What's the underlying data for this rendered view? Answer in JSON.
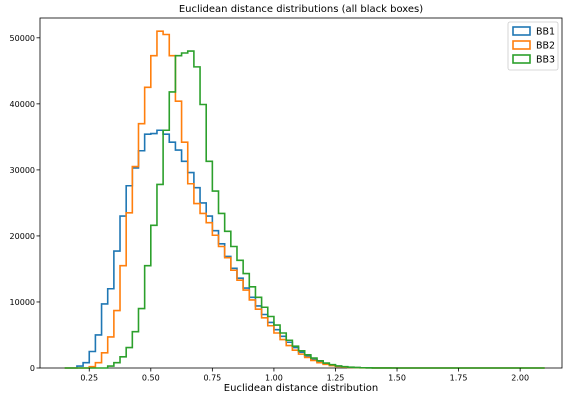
{
  "chart_data": {
    "type": "histogram",
    "title": "Euclidean distance distributions (all black boxes)",
    "xlabel": "Euclidean distance distribution",
    "ylabel": "",
    "xlim": [
      0.05,
      2.17
    ],
    "ylim": [
      0,
      53000
    ],
    "xticks": [
      0.25,
      0.5,
      0.75,
      1.0,
      1.25,
      1.5,
      1.75,
      2.0
    ],
    "xtick_labels": [
      "0.25",
      "0.50",
      "0.75",
      "1.00",
      "1.25",
      "1.50",
      "1.75",
      "2.00"
    ],
    "yticks": [
      0,
      10000,
      20000,
      30000,
      40000,
      50000
    ],
    "ytick_labels": [
      "0",
      "10000",
      "20000",
      "30000",
      "40000",
      "50000"
    ],
    "grid": false,
    "legend_position": "top-right",
    "bin_start": 0.15,
    "bin_width": 0.025,
    "series": [
      {
        "name": "BB1",
        "color": "#1f77b4",
        "counts": [
          0,
          0,
          300,
          800,
          2500,
          5000,
          9700,
          12000,
          17700,
          23000,
          27600,
          30300,
          32900,
          35400,
          35500,
          36000,
          35400,
          34200,
          33000,
          31300,
          29600,
          27300,
          25000,
          23000,
          20800,
          18800,
          16900,
          15100,
          13600,
          12100,
          10700,
          9400,
          8100,
          6900,
          5800,
          4800,
          3900,
          3100,
          2400,
          1800,
          1300,
          950,
          650,
          430,
          280,
          180,
          110,
          70,
          40,
          25,
          15,
          10,
          5,
          3,
          2,
          1,
          1,
          0,
          0,
          0,
          0,
          0,
          0,
          0,
          0,
          0,
          0,
          0,
          0,
          0,
          0,
          0,
          0,
          0,
          0,
          0,
          0,
          0
        ]
      },
      {
        "name": "BB2",
        "color": "#ff7f0e",
        "counts": [
          0,
          0,
          0,
          0,
          200,
          800,
          2300,
          4700,
          8700,
          15500,
          23500,
          30500,
          37000,
          42500,
          47300,
          51000,
          50500,
          47300,
          40400,
          34200,
          27900,
          24900,
          23400,
          22000,
          20100,
          18400,
          16700,
          14800,
          13300,
          11800,
          10300,
          8900,
          7600,
          6400,
          5300,
          4300,
          3400,
          2700,
          2100,
          1600,
          1150,
          800,
          550,
          360,
          230,
          140,
          85,
          50,
          30,
          18,
          10,
          6,
          3,
          2,
          1,
          1,
          0,
          0,
          0,
          0,
          0,
          0,
          0,
          0,
          0,
          0,
          0,
          0,
          0,
          0,
          0,
          0,
          0,
          0,
          0,
          0,
          0,
          0
        ]
      },
      {
        "name": "BB3",
        "color": "#2ca02c",
        "counts": [
          0,
          0,
          0,
          0,
          0,
          0,
          0,
          300,
          800,
          1700,
          3100,
          5500,
          9000,
          15500,
          21600,
          27800,
          36000,
          41800,
          47300,
          47700,
          48000,
          45600,
          39900,
          31300,
          26800,
          23400,
          20700,
          18400,
          16300,
          14300,
          12300,
          10700,
          9200,
          7800,
          6500,
          5300,
          4200,
          3300,
          2600,
          2000,
          1500,
          1100,
          750,
          500,
          320,
          200,
          120,
          70,
          40,
          22,
          12,
          6,
          3,
          2,
          1,
          1,
          0,
          0,
          0,
          0,
          0,
          0,
          0,
          0,
          0,
          0,
          0,
          0,
          0,
          0,
          0,
          0,
          0,
          0,
          0,
          0,
          0,
          0
        ]
      }
    ]
  }
}
